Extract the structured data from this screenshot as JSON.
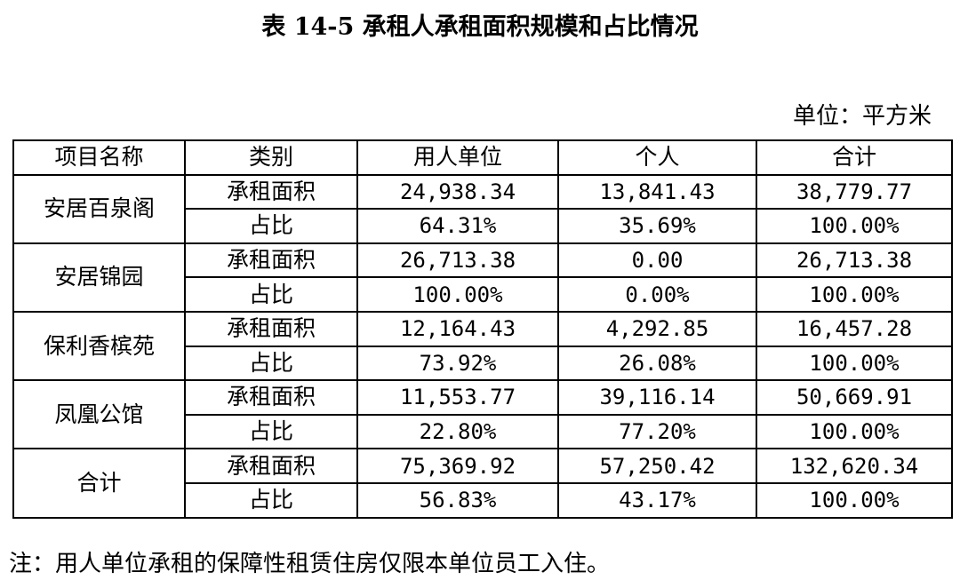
{
  "title": "表 14-5 承租人承租面积规模和占比情况",
  "unit": "单位：平方米",
  "table": {
    "headers": [
      "项目名称",
      "类别",
      "用人单位",
      "个人",
      "合计"
    ],
    "groups": [
      {
        "name": "安居百泉阁",
        "rows": [
          {
            "category": "承租面积",
            "employer": "24,938.34",
            "individual": "13,841.43",
            "total": "38,779.77"
          },
          {
            "category": "占比",
            "employer": "64.31%",
            "individual": "35.69%",
            "total": "100.00%"
          }
        ]
      },
      {
        "name": "安居锦园",
        "rows": [
          {
            "category": "承租面积",
            "employer": "26,713.38",
            "individual": "0.00",
            "total": "26,713.38"
          },
          {
            "category": "占比",
            "employer": "100.00%",
            "individual": "0.00%",
            "total": "100.00%"
          }
        ]
      },
      {
        "name": "保利香槟苑",
        "rows": [
          {
            "category": "承租面积",
            "employer": "12,164.43",
            "individual": "4,292.85",
            "total": "16,457.28"
          },
          {
            "category": "占比",
            "employer": "73.92%",
            "individual": "26.08%",
            "total": "100.00%"
          }
        ]
      },
      {
        "name": "凤凰公馆",
        "rows": [
          {
            "category": "承租面积",
            "employer": "11,553.77",
            "individual": "39,116.14",
            "total": "50,669.91"
          },
          {
            "category": "占比",
            "employer": "22.80%",
            "individual": "77.20%",
            "total": "100.00%"
          }
        ]
      },
      {
        "name": "合计",
        "rows": [
          {
            "category": "承租面积",
            "employer": "75,369.92",
            "individual": "57,250.42",
            "total": "132,620.34"
          },
          {
            "category": "占比",
            "employer": "56.83%",
            "individual": "43.17%",
            "total": "100.00%"
          }
        ]
      }
    ]
  },
  "note": "注：用人单位承租的保障性租赁住房仅限本单位员工入住。"
}
